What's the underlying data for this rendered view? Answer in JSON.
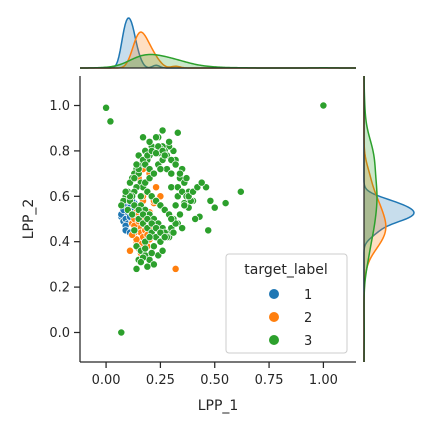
{
  "chart_data": {
    "type": "scatter",
    "title": "",
    "xlabel": "LPP_1",
    "ylabel": "LPP_2",
    "xlim": [
      -0.12,
      1.15
    ],
    "ylim": [
      -0.13,
      1.13
    ],
    "xticks": [
      0.0,
      0.25,
      0.5,
      0.75,
      1.0
    ],
    "xtick_labels": [
      "0.00",
      "0.25",
      "0.50",
      "0.75",
      "1.00"
    ],
    "yticks": [
      0.0,
      0.2,
      0.4,
      0.6,
      0.8,
      1.0
    ],
    "ytick_labels": [
      "0.0",
      "0.2",
      "0.4",
      "0.6",
      "0.8",
      "1.0"
    ],
    "grid": false,
    "legend": {
      "title": "target_label",
      "placement": "lower-right",
      "entries": [
        {
          "label": "1",
          "color": "#1f77b4"
        },
        {
          "label": "2",
          "color": "#ff7f0e"
        },
        {
          "label": "3",
          "color": "#2ca02c"
        }
      ]
    },
    "series": [
      {
        "name": "1",
        "color": "#1f77b4",
        "x": [
          0.07,
          0.08,
          0.09,
          0.1,
          0.11,
          0.12,
          0.08,
          0.09,
          0.1,
          0.11,
          0.12,
          0.13,
          0.07,
          0.09,
          0.1,
          0.11,
          0.13,
          0.14,
          0.08,
          0.1,
          0.12,
          0.09,
          0.11,
          0.15,
          0.16,
          0.1,
          0.12,
          0.14,
          0.13,
          0.23,
          0.09,
          0.11,
          0.12,
          0.08
        ],
        "y": [
          0.51,
          0.53,
          0.55,
          0.57,
          0.52,
          0.5,
          0.49,
          0.54,
          0.56,
          0.58,
          0.53,
          0.51,
          0.52,
          0.5,
          0.48,
          0.55,
          0.57,
          0.52,
          0.56,
          0.53,
          0.49,
          0.47,
          0.51,
          0.5,
          0.54,
          0.59,
          0.6,
          0.46,
          0.55,
          0.42,
          0.45,
          0.44,
          0.58,
          0.54
        ]
      },
      {
        "name": "2",
        "color": "#ff7f0e",
        "x": [
          0.12,
          0.13,
          0.14,
          0.15,
          0.16,
          0.17,
          0.14,
          0.15,
          0.16,
          0.17,
          0.18,
          0.19,
          0.13,
          0.15,
          0.18,
          0.2,
          0.21,
          0.16,
          0.14,
          0.17,
          0.19,
          0.22,
          0.15,
          0.18,
          0.2,
          0.23,
          0.11,
          0.16,
          0.21,
          0.19,
          0.15,
          0.13,
          0.25,
          0.32,
          0.12,
          0.17,
          0.2,
          0.22,
          0.24,
          0.18,
          0.16,
          0.14
        ],
        "y": [
          0.48,
          0.5,
          0.52,
          0.46,
          0.44,
          0.42,
          0.4,
          0.54,
          0.56,
          0.58,
          0.45,
          0.43,
          0.47,
          0.49,
          0.51,
          0.53,
          0.48,
          0.39,
          0.41,
          0.6,
          0.62,
          0.57,
          0.37,
          0.66,
          0.7,
          0.64,
          0.36,
          0.55,
          0.46,
          0.38,
          0.68,
          0.44,
          0.6,
          0.28,
          0.43,
          0.72,
          0.41,
          0.58,
          0.47,
          0.5,
          0.35,
          0.53
        ]
      },
      {
        "name": "3",
        "color": "#2ca02c",
        "x": [
          0.0,
          0.02,
          0.07,
          1.0,
          0.62,
          0.47,
          0.55,
          0.5,
          0.48,
          0.43,
          0.41,
          0.46,
          0.38,
          0.36,
          0.33,
          0.3,
          0.34,
          0.35,
          0.32,
          0.31,
          0.29,
          0.27,
          0.28,
          0.26,
          0.25,
          0.24,
          0.22,
          0.21,
          0.2,
          0.19,
          0.18,
          0.16,
          0.15,
          0.14,
          0.13,
          0.12,
          0.11,
          0.1,
          0.09,
          0.08,
          0.07,
          0.17,
          0.19,
          0.21,
          0.23,
          0.24,
          0.26,
          0.28,
          0.3,
          0.32,
          0.34,
          0.36,
          0.38,
          0.4,
          0.18,
          0.2,
          0.22,
          0.24,
          0.26,
          0.28,
          0.3,
          0.33,
          0.35,
          0.37,
          0.39,
          0.15,
          0.16,
          0.17,
          0.19,
          0.21,
          0.23,
          0.25,
          0.27,
          0.29,
          0.31,
          0.33,
          0.35,
          0.14,
          0.13,
          0.12,
          0.11,
          0.1,
          0.16,
          0.18,
          0.2,
          0.22,
          0.24,
          0.26,
          0.28,
          0.3,
          0.32,
          0.34,
          0.36,
          0.38,
          0.4,
          0.42,
          0.44,
          0.15,
          0.17,
          0.19,
          0.21,
          0.23,
          0.25,
          0.27,
          0.29,
          0.31,
          0.14,
          0.16,
          0.18,
          0.2,
          0.22,
          0.24,
          0.26,
          0.28,
          0.3,
          0.32,
          0.12,
          0.13,
          0.15,
          0.17,
          0.19,
          0.21,
          0.23,
          0.25,
          0.27,
          0.18,
          0.2,
          0.22,
          0.15,
          0.17,
          0.19,
          0.21,
          0.14,
          0.16,
          0.18,
          0.13,
          0.11,
          0.09,
          0.16,
          0.18,
          0.2,
          0.22,
          0.24,
          0.26,
          0.11,
          0.13,
          0.15,
          0.17,
          0.14,
          0.2,
          0.25,
          0.29,
          0.33,
          0.37,
          0.27,
          0.23
        ],
        "y": [
          0.99,
          0.93,
          0.0,
          1.0,
          0.62,
          0.45,
          0.57,
          0.55,
          0.58,
          0.51,
          0.5,
          0.64,
          0.55,
          0.57,
          0.6,
          0.64,
          0.68,
          0.72,
          0.76,
          0.8,
          0.82,
          0.8,
          0.78,
          0.82,
          0.81,
          0.79,
          0.8,
          0.82,
          0.78,
          0.76,
          0.8,
          0.74,
          0.78,
          0.72,
          0.7,
          0.68,
          0.66,
          0.62,
          0.6,
          0.58,
          0.56,
          0.76,
          0.78,
          0.8,
          0.79,
          0.82,
          0.8,
          0.78,
          0.76,
          0.74,
          0.7,
          0.66,
          0.62,
          0.58,
          0.74,
          0.72,
          0.7,
          0.74,
          0.76,
          0.72,
          0.7,
          0.64,
          0.62,
          0.6,
          0.58,
          0.7,
          0.66,
          0.64,
          0.62,
          0.6,
          0.58,
          0.56,
          0.54,
          0.52,
          0.5,
          0.48,
          0.46,
          0.64,
          0.62,
          0.6,
          0.58,
          0.54,
          0.56,
          0.54,
          0.52,
          0.5,
          0.48,
          0.46,
          0.44,
          0.46,
          0.48,
          0.52,
          0.56,
          0.6,
          0.62,
          0.64,
          0.66,
          0.5,
          0.48,
          0.46,
          0.44,
          0.42,
          0.4,
          0.44,
          0.42,
          0.44,
          0.38,
          0.36,
          0.4,
          0.42,
          0.38,
          0.34,
          0.36,
          0.42,
          0.5,
          0.56,
          0.52,
          0.56,
          0.54,
          0.52,
          0.5,
          0.48,
          0.46,
          0.44,
          0.42,
          0.34,
          0.32,
          0.3,
          0.32,
          0.33,
          0.29,
          0.35,
          0.28,
          0.31,
          0.37,
          0.45,
          0.6,
          0.62,
          0.6,
          0.66,
          0.68,
          0.7,
          0.86,
          0.89,
          0.66,
          0.68,
          0.72,
          0.86,
          0.74,
          0.84,
          0.72,
          0.84,
          0.88,
          0.68,
          0.78,
          0.86
        ]
      }
    ]
  }
}
